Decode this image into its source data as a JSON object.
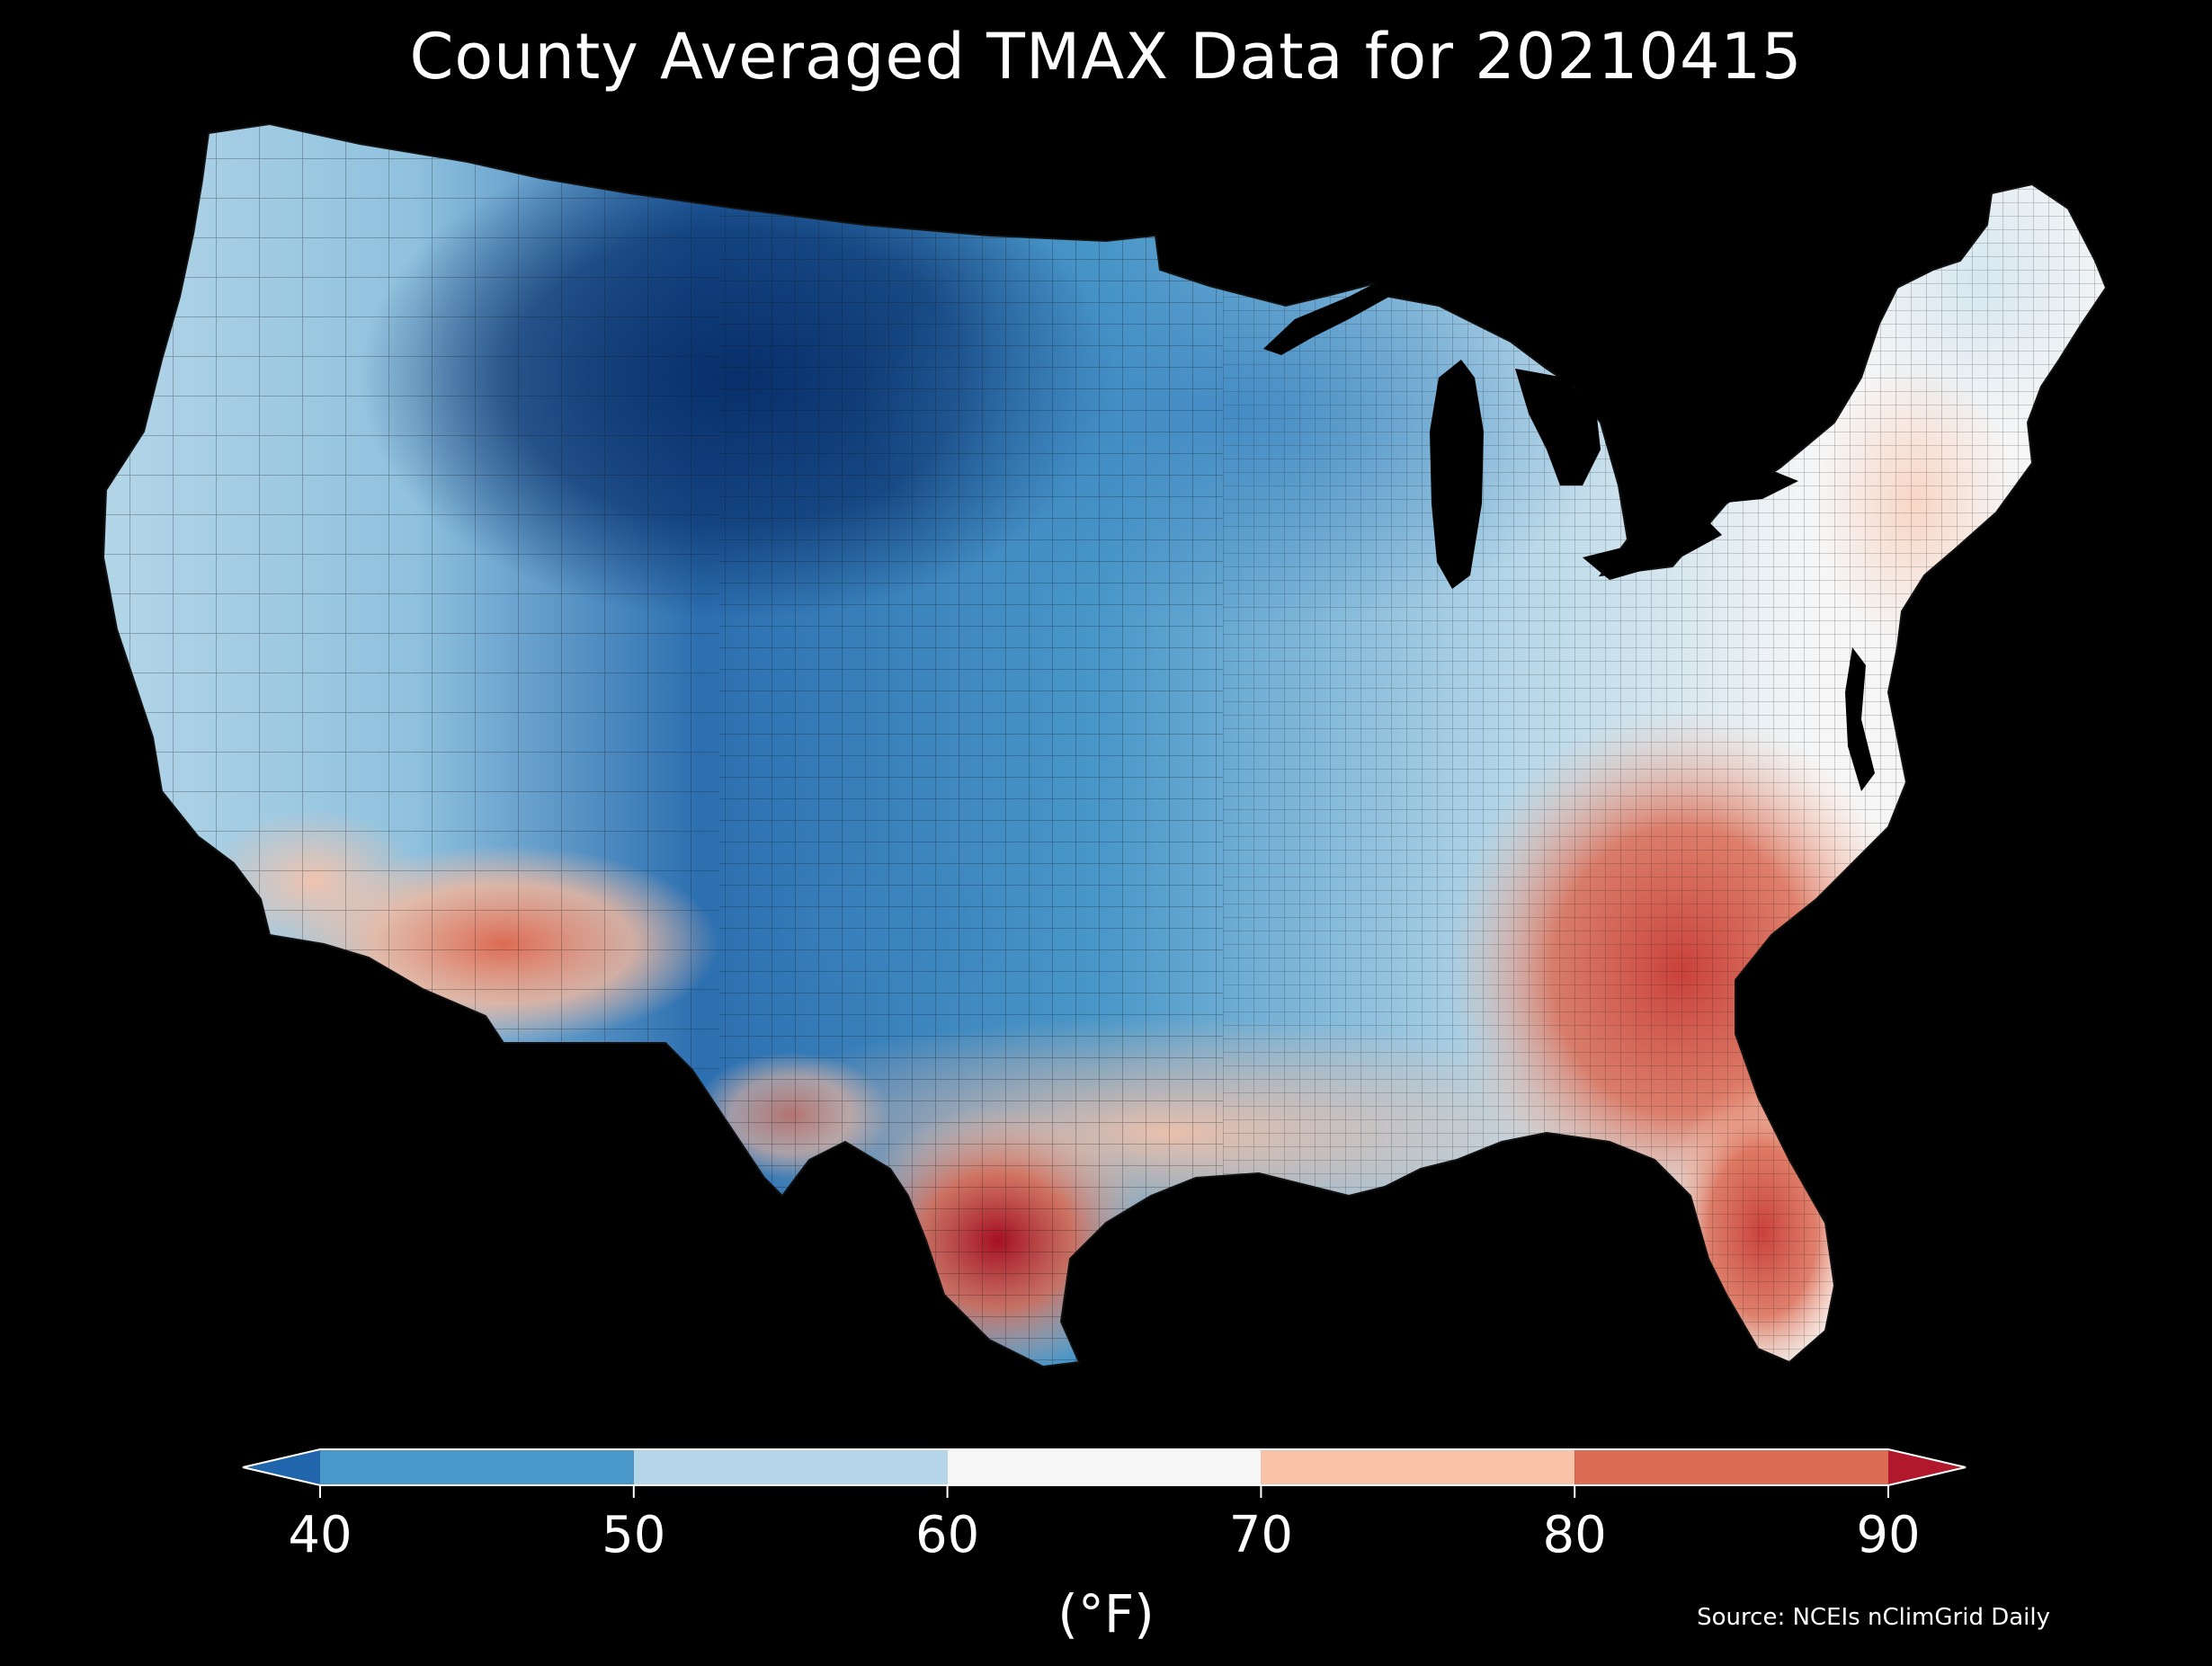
{
  "title": "County Averaged TMAX Data for 20210415",
  "source": "Source: NCEIs nClimGrid Daily",
  "colorbar": {
    "unit_label": "(°F)",
    "ticks": [
      "40",
      "50",
      "60",
      "70",
      "80",
      "90"
    ],
    "bins": [
      {
        "range": [
          40,
          50
        ],
        "color": "#4a98c9"
      },
      {
        "range": [
          50,
          60
        ],
        "color": "#b5d6e8"
      },
      {
        "range": [
          60,
          70
        ],
        "color": "#f6f6f6"
      },
      {
        "range": [
          70,
          80
        ],
        "color": "#f9c3a9"
      },
      {
        "range": [
          80,
          90
        ],
        "color": "#dc6b53"
      }
    ],
    "under_color": "#2166ac",
    "over_color": "#b2182b",
    "extend": "both"
  },
  "colors": {
    "background": "#000000",
    "text": "#ffffff",
    "county_border": "#1a1a1a",
    "map_blue_dark": "#08306b",
    "map_blue_mid": "#2c6fb0",
    "map_blue_light": "#8fc1de",
    "map_neutral": "#f7f7f7",
    "map_red_light": "#f4b89d",
    "map_red_mid": "#d9604a",
    "map_red_dark": "#a50f22"
  },
  "map": {
    "region": "Contiguous United States",
    "variable": "TMAX",
    "date": "20210415"
  }
}
